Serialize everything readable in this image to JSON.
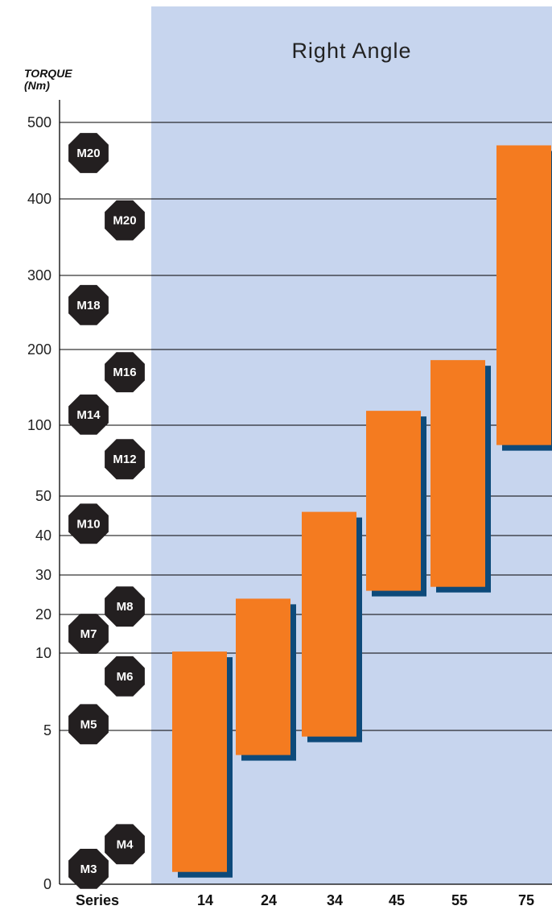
{
  "chart_data": {
    "type": "bar",
    "subtype": "floating-range",
    "title": "Right Angle",
    "ylabel_line1": "TORQUE",
    "ylabel_line2": "(Nm)",
    "xlabel": "Series",
    "y_tick_labels": [
      "0",
      "5",
      "10",
      "20",
      "30",
      "40",
      "50",
      "100",
      "200",
      "300",
      "400",
      "500"
    ],
    "categories": [
      "14",
      "24",
      "34",
      "45",
      "55",
      "75"
    ],
    "series": [
      {
        "ranges": [
          {
            "low": 0.4,
            "high": 10.4
          },
          {
            "low": 4.2,
            "high": 24
          },
          {
            "low": 4.8,
            "high": 46
          },
          {
            "low": 26,
            "high": 119
          },
          {
            "low": 27,
            "high": 186
          },
          {
            "low": 86,
            "high": 470
          }
        ]
      }
    ],
    "bolt_markers": [
      {
        "label": "M20",
        "value": 460,
        "column": 0
      },
      {
        "label": "M20",
        "value": 372,
        "column": 1
      },
      {
        "label": "M18",
        "value": 260,
        "column": 0
      },
      {
        "label": "M16",
        "value": 170,
        "column": 1
      },
      {
        "label": "M14",
        "value": 114,
        "column": 0
      },
      {
        "label": "M12",
        "value": 76,
        "column": 1
      },
      {
        "label": "M10",
        "value": 43,
        "column": 0
      },
      {
        "label": "M8",
        "value": 22,
        "column": 1
      },
      {
        "label": "M7",
        "value": 15,
        "column": 0
      },
      {
        "label": "M6",
        "value": 8.5,
        "column": 1
      },
      {
        "label": "M5",
        "value": 5.4,
        "column": 0
      },
      {
        "label": "M4",
        "value": 1.3,
        "column": 1
      },
      {
        "label": "M3",
        "value": 0.5,
        "column": 0
      }
    ],
    "colors": {
      "panel": "#c7d5ee",
      "bar": "#f47b20",
      "shadow": "#0d4a7a",
      "bolt": "#231f20",
      "gridline": "#000000"
    },
    "grid": true
  }
}
